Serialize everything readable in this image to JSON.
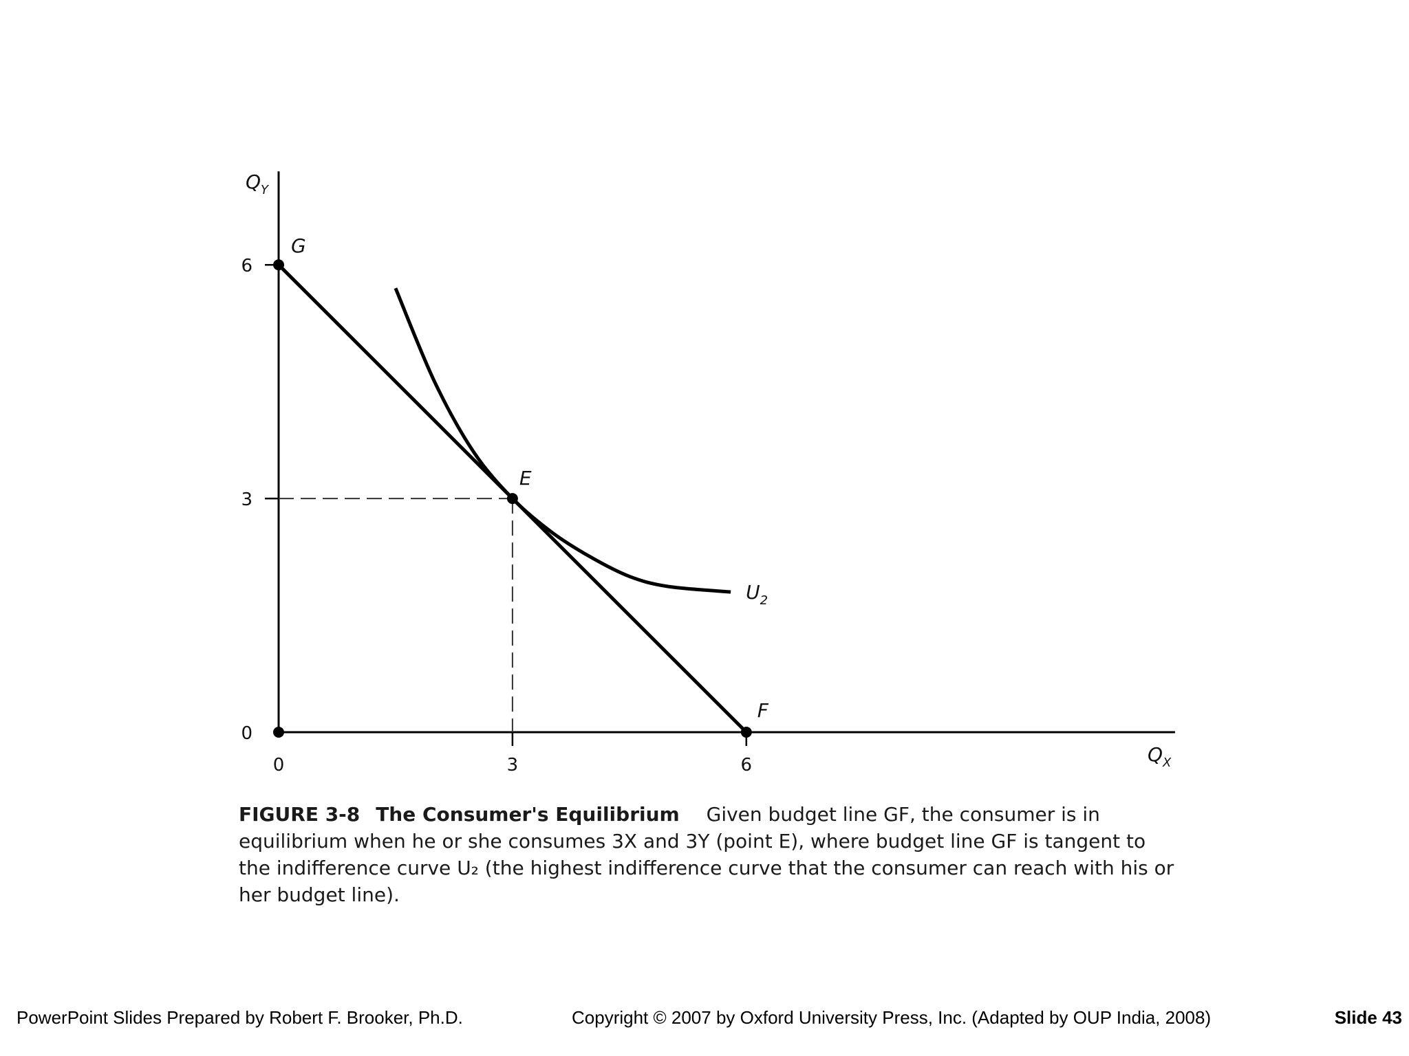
{
  "chart_data": {
    "type": "line",
    "x_axis_label": "Q",
    "x_axis_label_sub": "X",
    "y_axis_label": "Q",
    "y_axis_label_sub": "Y",
    "x_ticks": [
      0,
      3,
      6
    ],
    "y_ticks": [
      0,
      3,
      6
    ],
    "series": [
      {
        "key": "budget",
        "label": "GF",
        "points": [
          [
            0,
            6
          ],
          [
            6,
            0
          ]
        ],
        "color": "#000000"
      },
      {
        "key": "indifference",
        "label": "U",
        "label_sub": "2",
        "points": [
          [
            1.5,
            5.7
          ],
          [
            2.0,
            4.5
          ],
          [
            2.5,
            3.6
          ],
          [
            3.0,
            3.0
          ],
          [
            3.5,
            2.57
          ],
          [
            4.0,
            2.25
          ],
          [
            4.5,
            2.0
          ],
          [
            5.0,
            1.87
          ],
          [
            5.8,
            1.8
          ]
        ],
        "color": "#000000"
      }
    ],
    "points": [
      {
        "label": "G",
        "x": 0,
        "y": 6
      },
      {
        "label": "E",
        "x": 3,
        "y": 3
      },
      {
        "label": "F",
        "x": 6,
        "y": 0
      },
      {
        "label": "",
        "x": 0,
        "y": 0
      }
    ],
    "guides": [
      {
        "from": [
          0,
          3
        ],
        "to": [
          3,
          3
        ],
        "style": "dashed"
      },
      {
        "from": [
          3,
          3
        ],
        "to": [
          3,
          0
        ],
        "style": "dashed"
      }
    ],
    "xlim": [
      0,
      11.5
    ],
    "ylim": [
      0,
      7.2
    ],
    "grid": false
  },
  "caption": {
    "figure_id": "FIGURE 3-8",
    "figure_title": "The Consumer's Equilibrium",
    "text": "Given budget line GF, the consumer is in equilibrium when he or she consumes 3X and 3Y (point E), where budget line GF is tangent to the indifference curve U₂ (the highest indifference curve that the consumer can reach with his or her budget line)."
  },
  "footer": {
    "left": "PowerPoint Slides Prepared by Robert F. Brooker, Ph.D.",
    "center": "Copyright © 2007 by Oxford University Press, Inc. (Adapted by OUP India, 2008)",
    "right": "Slide 43"
  }
}
